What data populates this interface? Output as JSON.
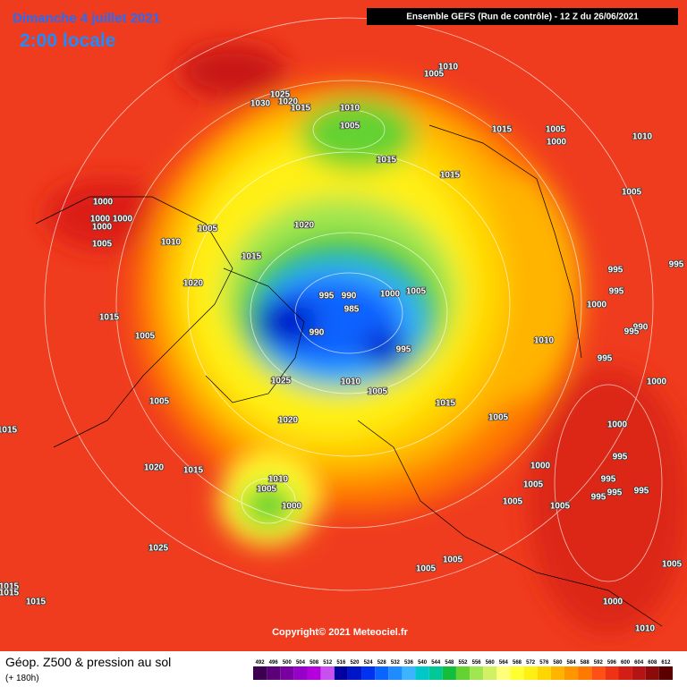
{
  "header": {
    "date": "Dimanche 4 juillet 2021",
    "time": "2:00 locale",
    "run": "Ensemble GEFS  (Run de contrôle)  -  12 Z du 26/06/2021"
  },
  "copyright": "Copyright© 2021 Meteociel.fr",
  "footer": {
    "title": "Géop. Z500 & pression au sol",
    "lead": "(+ 180h)"
  },
  "pressure_labels": [
    "1010",
    "1005",
    "1025",
    "1030",
    "1020",
    "1015",
    "1010",
    "1005",
    "1015",
    "1005",
    "1000",
    "1010",
    "1015",
    "1015",
    "1005",
    "1000",
    "1000",
    "1000",
    "1000",
    "1005",
    "1020",
    "1010",
    "1005",
    "1015",
    "995",
    "995",
    "1020",
    "995",
    "990",
    "1000",
    "1005",
    "995",
    "985",
    "1000",
    "1015",
    "990",
    "995",
    "1005",
    "990",
    "1010",
    "995",
    "995",
    "1025",
    "1010",
    "1000",
    "1005",
    "1015",
    "1005",
    "1005",
    "1020",
    "1000",
    "1015",
    "995",
    "1020",
    "1015",
    "1000",
    "995",
    "995",
    "1010",
    "1005",
    "1005",
    "995",
    "995",
    "1005",
    "1000",
    "1005",
    "1025",
    "1005",
    "1005",
    "1015",
    "1015",
    "1005",
    "1015",
    "1000",
    "1010"
  ],
  "legend": {
    "labels": [
      492,
      496,
      500,
      504,
      508,
      512,
      516,
      520,
      524,
      528,
      532,
      536,
      540,
      544,
      548,
      552,
      556,
      560,
      564,
      568,
      572,
      576,
      580,
      584,
      588,
      592,
      596,
      600,
      604,
      608,
      612
    ],
    "colors": [
      "#3c0050",
      "#5a0078",
      "#7800a0",
      "#9600c8",
      "#b400dc",
      "#c850f0",
      "#0000a0",
      "#0014c8",
      "#0032f0",
      "#0a64ff",
      "#1e8cff",
      "#3cb4ff",
      "#00c8c8",
      "#00c896",
      "#14be3c",
      "#64d232",
      "#a0e650",
      "#d2f064",
      "#ffff78",
      "#ffff32",
      "#fff014",
      "#ffd700",
      "#ffb400",
      "#ff9600",
      "#ff7800",
      "#ff5014",
      "#f03214",
      "#d21e14",
      "#b41414",
      "#8c0a0a",
      "#5a0000"
    ]
  }
}
